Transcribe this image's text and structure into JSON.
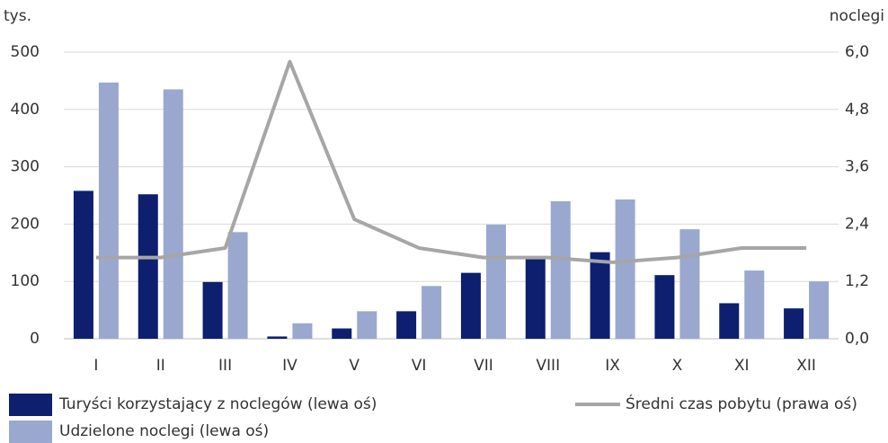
{
  "chart_data": {
    "type": "bar",
    "y_label": "tys.",
    "y2_label": "noclegi",
    "categories": [
      "I",
      "II",
      "III",
      "IV",
      "V",
      "VI",
      "VII",
      "VIII",
      "IX",
      "X",
      "XI",
      "XII"
    ],
    "series": [
      {
        "name": "Turyści korzystający z noclegów (lewa oś)",
        "color": "#0d1f6e",
        "type": "bar",
        "values": [
          258,
          252,
          99,
          4,
          18,
          48,
          115,
          143,
          151,
          111,
          62,
          53
        ]
      },
      {
        "name": "Udzielone noclegi (lewa oś)",
        "color": "#9aa8cf",
        "type": "bar",
        "values": [
          447,
          435,
          186,
          27,
          48,
          92,
          199,
          240,
          243,
          191,
          119,
          100
        ]
      },
      {
        "name": "Średni czas pobytu (prawa oś)",
        "color": "#a6a6a6",
        "type": "line",
        "axis": "y2",
        "values": [
          1.7,
          1.7,
          1.9,
          5.8,
          2.5,
          1.9,
          1.7,
          1.7,
          1.6,
          1.7,
          1.9,
          1.9
        ]
      }
    ],
    "ylim": [
      0,
      500
    ],
    "yticks": [
      0,
      100,
      200,
      300,
      400,
      500
    ],
    "y2lim": [
      0,
      6
    ],
    "y2ticks": [
      {
        "value": 0,
        "label": "0,0"
      },
      {
        "value": 1.2,
        "label": "1,2"
      },
      {
        "value": 2.4,
        "label": "2,4"
      },
      {
        "value": 3.6,
        "label": "3,6"
      },
      {
        "value": 4.8,
        "label": "4,8"
      },
      {
        "value": 6,
        "label": "6,0"
      }
    ],
    "grid": true
  }
}
